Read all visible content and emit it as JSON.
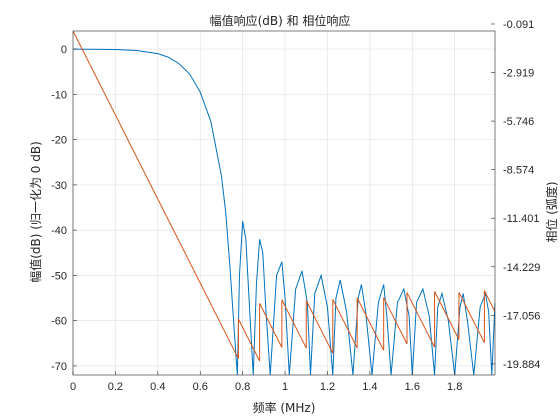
{
  "chart_data": {
    "type": "line",
    "title": "幅值响应(dB) 和 相位响应",
    "xlabel": "频率 (MHz)",
    "ylabel_left": "幅值(dB) (归一化为 0 dB)",
    "ylabel_right": "相位 (弧度)",
    "xlim": [
      0,
      1.99
    ],
    "ylim_left": [
      -72,
      4
    ],
    "ylim_right": [
      -20.53,
      -0.5
    ],
    "x_ticks": [
      "0",
      "0.2",
      "0.4",
      "0.6",
      "0.8",
      "1",
      "1.2",
      "1.4",
      "1.6",
      "1.8"
    ],
    "y_ticks_left": [
      "0",
      "-10",
      "-20",
      "-30",
      "-40",
      "-50",
      "-60",
      "-70"
    ],
    "y_ticks_right": [
      "-0.091",
      "-2.919",
      "-5.746",
      "-8.574",
      "-11.401",
      "-14.229",
      "-17.056",
      "-19.884"
    ],
    "grid": true,
    "colors": {
      "magnitude": "#0072BD",
      "phase": "#D95319"
    },
    "series": [
      {
        "axis": "left",
        "x": [
          0,
          0.2,
          0.3,
          0.4,
          0.45,
          0.5,
          0.55,
          0.6,
          0.65,
          0.7,
          0.72,
          0.74,
          0.76,
          0.775,
          0.785,
          0.8,
          0.815,
          0.83,
          0.85,
          0.865,
          0.88,
          0.895,
          0.91,
          0.93,
          0.96,
          0.985,
          1.0,
          1.02,
          1.05,
          1.08,
          1.105,
          1.12,
          1.14,
          1.17,
          1.2,
          1.225,
          1.24,
          1.26,
          1.29,
          1.32,
          1.345,
          1.36,
          1.38,
          1.41,
          1.44,
          1.465,
          1.48,
          1.5,
          1.53,
          1.56,
          1.585,
          1.6,
          1.62,
          1.65,
          1.68,
          1.705,
          1.72,
          1.74,
          1.77,
          1.8,
          1.825,
          1.84,
          1.86,
          1.89,
          1.92,
          1.945,
          1.96,
          1.975,
          1.99
        ],
        "y": [
          0,
          -0.1,
          -0.3,
          -1.0,
          -1.8,
          -3.2,
          -5.5,
          -9.5,
          -16,
          -28,
          -36,
          -48,
          -62,
          -72,
          -50,
          -38,
          -42,
          -55,
          -72,
          -52,
          -42,
          -45,
          -58,
          -72,
          -50,
          -47,
          -55,
          -72,
          -53,
          -49,
          -56,
          -72,
          -54,
          -50,
          -57,
          -72,
          -55,
          -51,
          -58,
          -72,
          -55,
          -52,
          -58,
          -72,
          -56,
          -52,
          -59,
          -72,
          -56,
          -53,
          -59,
          -72,
          -56,
          -53,
          -59,
          -72,
          -57,
          -54,
          -60,
          -72,
          -57,
          -54,
          -60,
          -72,
          -57,
          -54,
          -58,
          -72,
          -56
        ]
      },
      {
        "axis": "right",
        "x": [
          0,
          0.78,
          0.78,
          0.88,
          0.88,
          0.985,
          0.985,
          1.1,
          1.1,
          1.225,
          1.225,
          1.34,
          1.34,
          1.465,
          1.465,
          1.575,
          1.575,
          1.705,
          1.705,
          1.82,
          1.82,
          1.94,
          1.94,
          1.99
        ],
        "y": [
          -0.5,
          -19.58,
          -17.27,
          -19.71,
          -16.36,
          -18.93,
          -16.15,
          -18.96,
          -16.2,
          -19.26,
          -16.13,
          -18.95,
          -16.03,
          -19.09,
          -16.02,
          -18.72,
          -15.73,
          -18.91,
          -15.66,
          -18.47,
          -15.72,
          -18.65,
          -15.62,
          -16.85
        ]
      }
    ]
  }
}
